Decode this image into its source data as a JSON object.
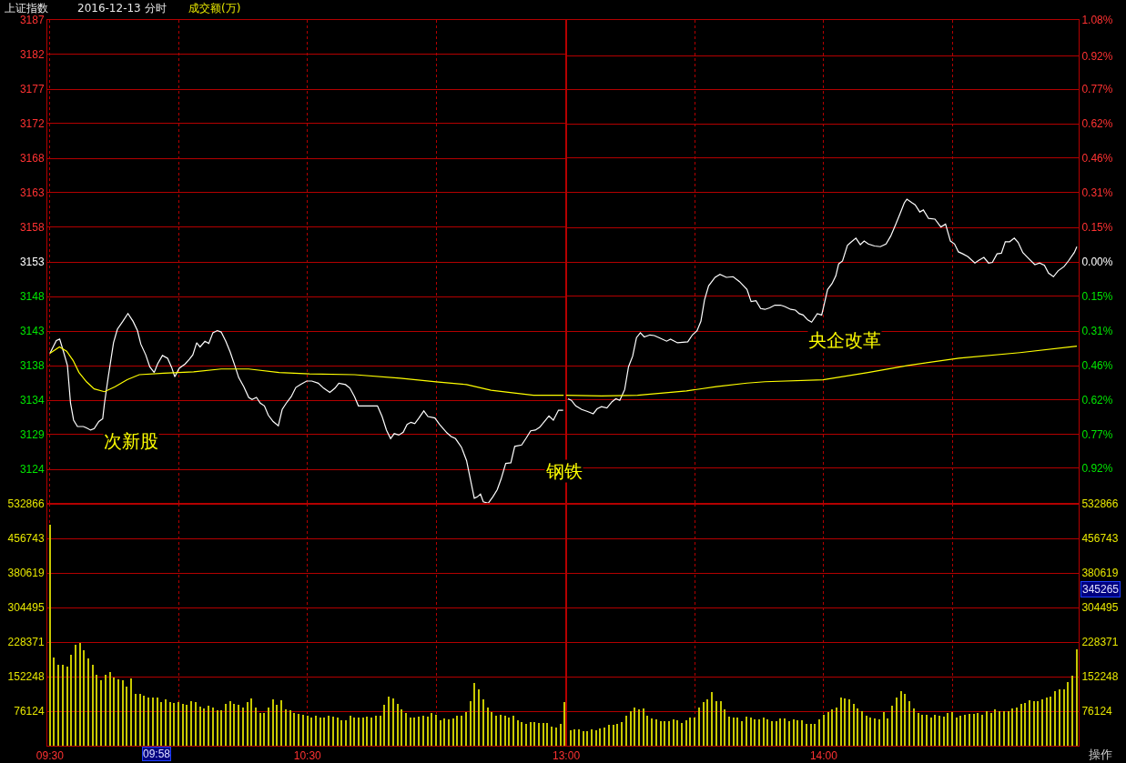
{
  "chart_data": [
    {
      "type": "line",
      "title": "上证指数",
      "subtitle": "2016-12-13 分时",
      "series": [
        {
          "color": "#ffffff",
          "x": [
            9.5,
            9.525,
            9.538,
            9.553,
            9.568,
            9.58,
            9.592,
            9.607,
            9.63,
            9.642,
            9.658,
            9.672,
            9.69,
            9.705,
            9.712,
            9.727,
            9.747,
            9.762,
            9.783,
            9.803,
            9.823,
            9.84,
            9.853,
            9.872,
            9.888,
            9.905,
            9.918,
            9.937,
            9.957,
            9.973,
            9.985,
            10.002,
            10.025,
            10.042,
            10.055,
            10.07,
            10.083,
            10.102,
            10.117,
            10.133,
            10.15,
            10.165,
            10.183,
            10.2,
            10.218,
            10.233,
            10.253,
            10.272,
            10.285,
            10.302,
            10.317,
            10.333,
            10.348,
            10.367,
            10.387,
            10.402,
            10.418,
            10.437,
            10.455,
            10.472,
            10.497,
            10.517,
            10.542,
            10.563,
            10.587,
            10.607,
            10.622,
            10.648,
            10.665,
            10.683,
            10.698,
            10.772,
            10.79,
            10.807,
            10.823,
            10.837,
            10.855,
            10.872,
            10.887,
            10.902,
            10.917,
            10.933,
            10.952,
            10.968,
            10.995,
            11.013,
            11.042,
            11.058,
            11.075,
            11.098,
            11.118,
            11.135,
            11.148,
            11.16,
            11.172,
            11.183,
            11.202,
            11.22,
            11.237,
            11.252,
            11.27,
            11.29,
            11.305,
            11.332,
            11.35,
            11.367,
            11.385,
            11.402,
            11.42,
            11.438,
            11.455,
            11.475,
            11.493
          ],
          "values": [
            3140.1,
            3141.9,
            3142.1,
            3140.3,
            3138.4,
            3133.1,
            3130.7,
            3129.8,
            3129.8,
            3129.6,
            3129.3,
            3129.5,
            3130.5,
            3130.9,
            3133.1,
            3136.9,
            3141.6,
            3143.5,
            3144.6,
            3145.7,
            3144.6,
            3143.3,
            3141.4,
            3139.9,
            3138.2,
            3137.4,
            3138.6,
            3139.8,
            3139.4,
            3138.1,
            3136.8,
            3138.0,
            3138.6,
            3139.3,
            3139.9,
            3141.6,
            3141.0,
            3141.8,
            3141.5,
            3143.0,
            3143.3,
            3143.1,
            3141.8,
            3140.3,
            3138.4,
            3136.7,
            3135.4,
            3133.9,
            3133.6,
            3133.9,
            3133.1,
            3132.7,
            3131.4,
            3130.5,
            3129.9,
            3132.2,
            3133.1,
            3134.0,
            3135.3,
            3135.7,
            3136.2,
            3136.2,
            3135.9,
            3135.2,
            3134.6,
            3135.2,
            3135.9,
            3135.7,
            3135.2,
            3134.0,
            3132.7,
            3132.7,
            3131.2,
            3129.3,
            3128.1,
            3128.8,
            3128.6,
            3129.0,
            3130.1,
            3130.4,
            3130.2,
            3131.0,
            3132.0,
            3131.2,
            3131.0,
            3130.1,
            3128.9,
            3128.4,
            3128.1,
            3126.9,
            3125.0,
            3122.0,
            3119.7,
            3119.9,
            3120.3,
            3119.2,
            3119.0,
            3119.9,
            3120.9,
            3122.4,
            3124.6,
            3124.7,
            3127.0,
            3127.2,
            3128.2,
            3129.2,
            3129.3,
            3129.7,
            3130.5,
            3131.3,
            3130.7,
            3132.1,
            3132.1
          ]
        },
        {
          "color": "#ffff00",
          "x": [
            9.5,
            9.537,
            9.565,
            9.59,
            9.613,
            9.642,
            9.672,
            9.712,
            9.753,
            9.8,
            9.847,
            9.942,
            10.058,
            10.165,
            10.272,
            10.39,
            10.508,
            10.683,
            10.86,
            11.0,
            11.118,
            11.213,
            11.378,
            11.495
          ],
          "values": [
            3140.1,
            3141.0,
            3140.4,
            3139.1,
            3137.4,
            3136.1,
            3135.1,
            3134.7,
            3135.4,
            3136.4,
            3137.1,
            3137.3,
            3137.5,
            3137.9,
            3137.9,
            3137.4,
            3137.2,
            3137.1,
            3136.6,
            3136.1,
            3135.7,
            3134.9,
            3134.2,
            3134.2
          ]
        }
      ],
      "xlim": [
        9.49,
        11.505
      ],
      "xticks": [
        {
          "value": 9.5,
          "label": null
        },
        {
          "value": 10,
          "label": null
        },
        {
          "value": 10.5,
          "label": null
        },
        {
          "value": 11,
          "label": null
        }
      ],
      "ylim": [
        3118.92,
        3187.02
      ],
      "yticks": [
        {
          "value": 3123.78,
          "label": "3124"
        },
        {
          "value": 3128.65,
          "label": "3129"
        },
        {
          "value": 3133.51,
          "label": "3134"
        },
        {
          "value": 3138.37,
          "label": "3138"
        },
        {
          "value": 3143.24,
          "label": "3143"
        },
        {
          "value": 3148.1,
          "label": "3148"
        },
        {
          "value": 3152.97,
          "label": "3153"
        },
        {
          "value": 3157.84,
          "label": "3158"
        },
        {
          "value": 3162.7,
          "label": "3163"
        },
        {
          "value": 3167.56,
          "label": "3168"
        },
        {
          "value": 3172.43,
          "label": "3172"
        },
        {
          "value": 3177.29,
          "label": "3177"
        },
        {
          "value": 3182.16,
          "label": "3182"
        },
        {
          "value": 3187.02,
          "label": "3187"
        }
      ],
      "grid": true,
      "tick_labels": "y",
      "annotations": [
        "次新股",
        "钢铁",
        "成交额(万)"
      ]
    },
    {
      "type": "line",
      "series": [
        {
          "color": "#ffffff",
          "x": [
            13.007,
            13.02,
            13.037,
            13.06,
            13.083,
            13.105,
            13.12,
            13.137,
            13.158,
            13.178,
            13.193,
            13.208,
            13.227,
            13.242,
            13.258,
            13.273,
            13.288,
            13.303,
            13.325,
            13.342,
            13.36,
            13.39,
            13.405,
            13.432,
            13.472,
            13.49,
            13.508,
            13.523,
            13.537,
            13.553,
            13.578,
            13.597,
            13.622,
            13.648,
            13.673,
            13.702,
            13.718,
            13.737,
            13.755,
            13.772,
            13.79,
            13.81,
            13.832,
            13.848,
            13.872,
            13.89,
            13.905,
            13.92,
            13.938,
            13.953,
            13.975,
            13.992,
            14.003,
            14.015,
            14.032,
            14.047,
            14.058,
            14.073,
            14.092,
            14.105,
            14.125,
            14.142,
            14.157,
            14.173,
            14.197,
            14.22,
            14.242,
            14.26,
            14.278,
            14.297,
            14.313,
            14.323,
            14.343,
            14.355,
            14.373,
            14.387,
            14.407,
            14.432,
            14.455,
            14.473,
            14.492,
            14.508,
            14.523,
            14.54,
            14.56,
            14.587,
            14.602,
            14.622,
            14.64,
            14.655,
            14.673,
            14.69,
            14.705,
            14.722,
            14.74,
            14.755,
            14.773,
            14.797,
            14.82,
            14.838,
            14.857,
            14.873,
            14.892,
            14.91,
            14.933,
            14.95,
            14.973,
            14.983
          ],
          "values": [
            -0.611,
            -0.618,
            -0.643,
            -0.659,
            -0.668,
            -0.678,
            -0.656,
            -0.646,
            -0.652,
            -0.624,
            -0.611,
            -0.618,
            -0.57,
            -0.468,
            -0.421,
            -0.338,
            -0.316,
            -0.335,
            -0.326,
            -0.329,
            -0.338,
            -0.354,
            -0.345,
            -0.361,
            -0.357,
            -0.326,
            -0.307,
            -0.265,
            -0.17,
            -0.107,
            -0.069,
            -0.056,
            -0.069,
            -0.066,
            -0.088,
            -0.123,
            -0.177,
            -0.173,
            -0.208,
            -0.212,
            -0.205,
            -0.193,
            -0.193,
            -0.199,
            -0.212,
            -0.215,
            -0.231,
            -0.237,
            -0.259,
            -0.269,
            -0.231,
            -0.237,
            -0.183,
            -0.123,
            -0.097,
            -0.062,
            -0.009,
            0.004,
            0.074,
            0.087,
            0.106,
            0.077,
            0.093,
            0.08,
            0.071,
            0.068,
            0.08,
            0.115,
            0.163,
            0.217,
            0.264,
            0.28,
            0.264,
            0.255,
            0.223,
            0.232,
            0.194,
            0.191,
            0.156,
            0.169,
            0.093,
            0.08,
            0.045,
            0.036,
            0.023,
            -0.005,
            0.007,
            0.02,
            -0.005,
            -0.002,
            0.036,
            0.039,
            0.09,
            0.09,
            0.106,
            0.087,
            0.042,
            0.014,
            -0.012,
            -0.005,
            -0.015,
            -0.05,
            -0.066,
            -0.04,
            -0.021,
            0.004,
            0.042,
            0.068
          ]
        },
        {
          "color": "#ffff00",
          "x": [
            13.0,
            13.137,
            13.277,
            13.467,
            13.583,
            13.702,
            13.772,
            13.997,
            14.172,
            14.327,
            14.525,
            14.762,
            14.983
          ],
          "values": [
            -0.595,
            -0.598,
            -0.595,
            -0.576,
            -0.557,
            -0.541,
            -0.535,
            -0.526,
            -0.494,
            -0.462,
            -0.43,
            -0.405,
            -0.376
          ]
        }
      ],
      "xlim": [
        13.0,
        14.99
      ],
      "xticks": [
        {
          "value": 13,
          "label": null
        },
        {
          "value": 13.5,
          "label": null
        },
        {
          "value": 14,
          "label": null
        },
        {
          "value": 14.5,
          "label": null
        }
      ],
      "ylim": [
        -1.08,
        1.08
      ],
      "yticks": [
        {
          "value": -0.92,
          "label": "0.92%"
        },
        {
          "value": -0.771,
          "label": "0.77%"
        },
        {
          "value": -0.617,
          "label": "0.62%"
        },
        {
          "value": -0.463,
          "label": "0.46%"
        },
        {
          "value": -0.309,
          "label": "0.31%"
        },
        {
          "value": -0.154,
          "label": "0.15%"
        },
        {
          "value": 0,
          "label": "0.00%"
        },
        {
          "value": 0.154,
          "label": "0.15%"
        },
        {
          "value": 0.309,
          "label": "0.31%"
        },
        {
          "value": 0.463,
          "label": "0.46%"
        },
        {
          "value": 0.617,
          "label": "0.62%"
        },
        {
          "value": 0.771,
          "label": "0.77%"
        },
        {
          "value": 0.92,
          "label": "0.92%"
        },
        {
          "value": 1.08,
          "label": "1.08%"
        }
      ],
      "grid": true,
      "tick_labels": "y",
      "annotations": [
        "央企改革"
      ]
    },
    {
      "type": "bar",
      "x": [
        9.5,
        9.517,
        9.533,
        9.55,
        9.567,
        9.583,
        9.6,
        9.617,
        9.633,
        9.65,
        9.667,
        9.683,
        9.7,
        9.717,
        9.733,
        9.75,
        9.767,
        9.783,
        9.8,
        9.817,
        9.833,
        9.85,
        9.867,
        9.883,
        9.9,
        9.917,
        9.933,
        9.95,
        9.967,
        9.983,
        10,
        10.017,
        10.033,
        10.05,
        10.067,
        10.083,
        10.1,
        10.117,
        10.133,
        10.15,
        10.167,
        10.183,
        10.2,
        10.217,
        10.233,
        10.25,
        10.267,
        10.283,
        10.3,
        10.317,
        10.333,
        10.35,
        10.367,
        10.383,
        10.4,
        10.417,
        10.433,
        10.45,
        10.467,
        10.483,
        10.5,
        10.517,
        10.533,
        10.55,
        10.567,
        10.583,
        10.6,
        10.617,
        10.633,
        10.65,
        10.667,
        10.683,
        10.7,
        10.717,
        10.733,
        10.75,
        10.767,
        10.783,
        10.8,
        10.817,
        10.833,
        10.85,
        10.867,
        10.883,
        10.9,
        10.917,
        10.933,
        10.95,
        10.967,
        10.983,
        11,
        11.017,
        11.033,
        11.05,
        11.067,
        11.083,
        11.1,
        11.117,
        11.133,
        11.15,
        11.167,
        11.183,
        11.2,
        11.217,
        11.233,
        11.25,
        11.267,
        11.283,
        11.3,
        11.317,
        11.333,
        11.35,
        11.367,
        11.383,
        11.4,
        11.417,
        11.433,
        11.45,
        11.467,
        11.483,
        11.5
      ],
      "values": [
        486000,
        195000,
        179000,
        179000,
        175000,
        201000,
        222000,
        227000,
        210000,
        193000,
        179000,
        157000,
        145000,
        157000,
        163000,
        151000,
        147000,
        145000,
        131000,
        149000,
        114000,
        115000,
        111000,
        107000,
        107000,
        106000,
        97000,
        103000,
        96000,
        94000,
        96000,
        93000,
        90000,
        99000,
        96000,
        87000,
        82000,
        89000,
        84000,
        79000,
        79000,
        93000,
        99000,
        93000,
        91000,
        84000,
        96000,
        105000,
        85000,
        72000,
        73000,
        85000,
        103000,
        90000,
        101000,
        81000,
        79000,
        73000,
        71000,
        69000,
        66000,
        63000,
        66000,
        63000,
        63000,
        66000,
        64000,
        62000,
        57000,
        56000,
        66000,
        63000,
        62000,
        62000,
        64000,
        62000,
        67000,
        67000,
        91000,
        108000,
        104000,
        93000,
        81000,
        72000,
        62000,
        62000,
        65000,
        67000,
        65000,
        73000,
        69000,
        57000,
        60000,
        59000,
        60000,
        67000,
        66000,
        75000,
        99000,
        139000,
        124000,
        103000,
        84000,
        75000,
        67000,
        69000,
        66000,
        63000,
        67000,
        57000,
        53000,
        49000,
        53000,
        53000,
        51000,
        51000,
        51000,
        43000,
        41000,
        49000,
        97000
      ],
      "color": "#c8c800",
      "xlim": [
        9.49,
        11.505
      ],
      "xticks": [
        {
          "value": 9.5,
          "label": "09:30"
        },
        {
          "value": 10,
          "label": null
        },
        {
          "value": 10.5,
          "label": "10:30"
        },
        {
          "value": 11,
          "label": null
        }
      ],
      "ylim": [
        0,
        532866
      ],
      "yticks": [
        76124,
        152248,
        228371,
        304495,
        380619,
        456743,
        532866
      ],
      "grid": true,
      "annotations": [
        "09:58"
      ]
    },
    {
      "type": "bar",
      "x": [
        13.017,
        13.033,
        13.05,
        13.067,
        13.083,
        13.1,
        13.117,
        13.133,
        13.15,
        13.167,
        13.183,
        13.2,
        13.217,
        13.233,
        13.25,
        13.267,
        13.283,
        13.3,
        13.317,
        13.333,
        13.35,
        13.367,
        13.383,
        13.4,
        13.417,
        13.433,
        13.45,
        13.467,
        13.483,
        13.5,
        13.517,
        13.533,
        13.55,
        13.567,
        13.583,
        13.6,
        13.617,
        13.633,
        13.65,
        13.667,
        13.683,
        13.7,
        13.717,
        13.733,
        13.75,
        13.767,
        13.783,
        13.8,
        13.817,
        13.833,
        13.85,
        13.867,
        13.883,
        13.9,
        13.917,
        13.933,
        13.95,
        13.967,
        13.983,
        14,
        14.017,
        14.033,
        14.05,
        14.067,
        14.083,
        14.1,
        14.117,
        14.133,
        14.15,
        14.167,
        14.183,
        14.2,
        14.217,
        14.233,
        14.25,
        14.267,
        14.283,
        14.3,
        14.317,
        14.333,
        14.35,
        14.367,
        14.383,
        14.4,
        14.417,
        14.433,
        14.45,
        14.467,
        14.483,
        14.5,
        14.517,
        14.533,
        14.55,
        14.567,
        14.583,
        14.6,
        14.617,
        14.633,
        14.65,
        14.667,
        14.683,
        14.7,
        14.717,
        14.733,
        14.75,
        14.767,
        14.783,
        14.8,
        14.817,
        14.833,
        14.85,
        14.867,
        14.883,
        14.9,
        14.917,
        14.933,
        14.95,
        14.967,
        14.983
      ],
      "values": [
        35000,
        37000,
        37000,
        33000,
        32000,
        36000,
        34000,
        38000,
        40000,
        46000,
        46000,
        48000,
        52000,
        66000,
        77000,
        84000,
        80000,
        82000,
        67000,
        61000,
        59000,
        54000,
        54000,
        54000,
        59000,
        56000,
        50000,
        56000,
        63000,
        63000,
        84000,
        96000,
        102000,
        118000,
        98000,
        98000,
        81000,
        65000,
        62000,
        63000,
        55000,
        65000,
        62000,
        58000,
        59000,
        63000,
        59000,
        55000,
        55000,
        61000,
        60000,
        54000,
        59000,
        57000,
        56000,
        48000,
        48000,
        48000,
        59000,
        69000,
        74000,
        81000,
        84000,
        106000,
        104000,
        103000,
        93000,
        83000,
        77000,
        67000,
        62000,
        61000,
        59000,
        74000,
        61000,
        89000,
        107000,
        121000,
        115000,
        98000,
        83000,
        72000,
        68000,
        68000,
        63000,
        68000,
        66000,
        65000,
        72000,
        74000,
        63000,
        66000,
        68000,
        70000,
        70000,
        72000,
        68000,
        77000,
        72000,
        80000,
        77000,
        76000,
        76000,
        82000,
        85000,
        92000,
        95000,
        100000,
        99000,
        98000,
        102000,
        106000,
        108000,
        121000,
        124000,
        125000,
        140000,
        154000,
        212000
      ],
      "color": "#c8c800",
      "xlim": [
        13.0,
        14.99
      ],
      "xticks": [
        {
          "value": 13,
          "label": "13:00"
        },
        {
          "value": 13.5,
          "label": null
        },
        {
          "value": 14,
          "label": "14:00"
        },
        {
          "value": 14.5,
          "label": null
        }
      ],
      "ylim": [
        0,
        532866
      ],
      "yticks": [
        76124,
        152248,
        228371,
        304495,
        380619,
        456743,
        532866
      ],
      "grid": true,
      "annotations": [
        "345265",
        "操作"
      ]
    }
  ]
}
